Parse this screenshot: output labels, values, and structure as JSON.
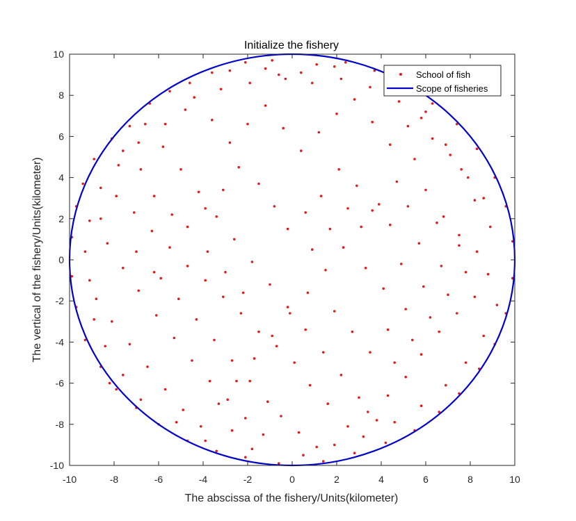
{
  "chart_data": {
    "type": "scatter",
    "title": "Initialize the fishery",
    "xlabel": "The abscissa of the fishery/Units(kilometer)",
    "ylabel": "The vertical of the fishery/Units(kilometer)",
    "xlim": [
      -10,
      10
    ],
    "ylim": [
      -10,
      10
    ],
    "xticks": [
      -10,
      -8,
      -6,
      -4,
      -2,
      0,
      2,
      4,
      6,
      8,
      10
    ],
    "yticks": [
      -10,
      -8,
      -6,
      -4,
      -2,
      0,
      2,
      4,
      6,
      8,
      10
    ],
    "grid": false,
    "legend_position": "top-right",
    "series": [
      {
        "name": "School of fish",
        "kind": "points",
        "color": "#e31a1c",
        "points": [
          [
            -0.9,
            9.7
          ],
          [
            -2.1,
            9.6
          ],
          [
            -2.8,
            9.2
          ],
          [
            -1.2,
            9.3
          ],
          [
            1.1,
            9.5
          ],
          [
            1.9,
            9.4
          ],
          [
            0.4,
            9.1
          ],
          [
            -0.3,
            8.8
          ],
          [
            -3.6,
            9.1
          ],
          [
            -4.6,
            8.6
          ],
          [
            -5.5,
            8.2
          ],
          [
            -6.4,
            7.6
          ],
          [
            -7.3,
            6.5
          ],
          [
            -8.1,
            5.9
          ],
          [
            -8.9,
            4.9
          ],
          [
            -9.4,
            3.7
          ],
          [
            -9.7,
            2.6
          ],
          [
            -9.9,
            1.1
          ],
          [
            -9.9,
            -0.8
          ],
          [
            -9.7,
            -2.3
          ],
          [
            -9.3,
            -3.9
          ],
          [
            -8.6,
            -5.2
          ],
          [
            -7.9,
            -6.3
          ],
          [
            -7.0,
            -7.2
          ],
          [
            -6.0,
            -8.0
          ],
          [
            -4.7,
            -8.8
          ],
          [
            -3.4,
            -9.3
          ],
          [
            -2.1,
            -9.6
          ],
          [
            -0.6,
            -9.9
          ],
          [
            1.4,
            -9.8
          ],
          [
            2.8,
            -9.4
          ],
          [
            4.2,
            -8.9
          ],
          [
            5.5,
            -8.3
          ],
          [
            6.6,
            -7.4
          ],
          [
            7.5,
            -6.5
          ],
          [
            8.4,
            -5.3
          ],
          [
            9.1,
            -4.1
          ],
          [
            9.6,
            -2.6
          ],
          [
            9.9,
            -0.9
          ],
          [
            9.9,
            0.9
          ],
          [
            9.6,
            2.6
          ],
          [
            9.1,
            4.0
          ],
          [
            8.3,
            5.4
          ],
          [
            7.4,
            6.6
          ],
          [
            6.3,
            7.6
          ],
          [
            5.1,
            8.5
          ],
          [
            3.7,
            9.2
          ],
          [
            2.4,
            9.6
          ],
          [
            -7.6,
            5.3
          ],
          [
            -6.8,
            4.4
          ],
          [
            -6.2,
            3.1
          ],
          [
            -5.4,
            2.2
          ],
          [
            -4.7,
            1.6
          ],
          [
            -3.9,
            2.5
          ],
          [
            -3.1,
            3.4
          ],
          [
            -2.4,
            4.5
          ],
          [
            -1.5,
            3.7
          ],
          [
            -0.8,
            2.6
          ],
          [
            -0.2,
            1.5
          ],
          [
            0.6,
            2.3
          ],
          [
            1.3,
            3.1
          ],
          [
            2.1,
            4.4
          ],
          [
            2.9,
            3.6
          ],
          [
            3.6,
            2.4
          ],
          [
            4.4,
            1.7
          ],
          [
            5.2,
            2.6
          ],
          [
            6.0,
            3.4
          ],
          [
            6.8,
            2.1
          ],
          [
            7.5,
            1.2
          ],
          [
            8.3,
            0.4
          ],
          [
            8.8,
            -0.7
          ],
          [
            8.2,
            -1.8
          ],
          [
            7.4,
            -2.6
          ],
          [
            6.6,
            -3.5
          ],
          [
            5.8,
            -4.6
          ],
          [
            5.1,
            -5.7
          ],
          [
            4.3,
            -6.6
          ],
          [
            3.4,
            -7.4
          ],
          [
            2.5,
            -8.1
          ],
          [
            1.6,
            -7.0
          ],
          [
            0.8,
            -6.1
          ],
          [
            0.1,
            -5.0
          ],
          [
            -0.7,
            -4.2
          ],
          [
            -1.5,
            -3.5
          ],
          [
            -2.3,
            -2.6
          ],
          [
            -3.1,
            -1.8
          ],
          [
            -3.9,
            -1.0
          ],
          [
            -4.7,
            -0.3
          ],
          [
            -5.5,
            0.6
          ],
          [
            -6.3,
            1.4
          ],
          [
            -7.1,
            2.3
          ],
          [
            -7.9,
            3.1
          ],
          [
            -8.6,
            2.0
          ],
          [
            -8.3,
            0.8
          ],
          [
            -7.6,
            -0.4
          ],
          [
            -6.9,
            -1.5
          ],
          [
            -6.1,
            -2.7
          ],
          [
            -5.3,
            -3.8
          ],
          [
            -4.5,
            -4.9
          ],
          [
            -3.7,
            -5.9
          ],
          [
            -2.9,
            -6.8
          ],
          [
            -2.1,
            -7.7
          ],
          [
            -1.3,
            -8.5
          ],
          [
            -0.5,
            -7.6
          ],
          [
            0.3,
            -8.4
          ],
          [
            1.1,
            -9.1
          ],
          [
            -8.8,
            -1.9
          ],
          [
            -8.1,
            -3.0
          ],
          [
            -7.3,
            -4.1
          ],
          [
            -6.5,
            -5.2
          ],
          [
            -5.7,
            -6.3
          ],
          [
            -4.9,
            -7.3
          ],
          [
            -4.1,
            -8.1
          ],
          [
            -3.3,
            -7.0
          ],
          [
            -2.5,
            -5.9
          ],
          [
            -1.7,
            -4.8
          ],
          [
            -0.9,
            -3.7
          ],
          [
            -0.1,
            -2.6
          ],
          [
            0.7,
            -1.6
          ],
          [
            1.5,
            -0.5
          ],
          [
            2.3,
            0.6
          ],
          [
            3.1,
            1.6
          ],
          [
            3.9,
            2.7
          ],
          [
            4.7,
            3.8
          ],
          [
            5.5,
            4.9
          ],
          [
            6.3,
            5.9
          ],
          [
            7.1,
            5.1
          ],
          [
            7.9,
            4.0
          ],
          [
            8.6,
            3.0
          ],
          [
            -6.6,
            6.6
          ],
          [
            -5.8,
            5.5
          ],
          [
            -5.0,
            4.4
          ],
          [
            -4.2,
            3.3
          ],
          [
            -3.4,
            2.1
          ],
          [
            -2.6,
            1.0
          ],
          [
            -1.8,
            -0.1
          ],
          [
            -1.0,
            -1.2
          ],
          [
            -0.2,
            -2.3
          ],
          [
            0.6,
            -3.4
          ],
          [
            1.4,
            -4.5
          ],
          [
            2.2,
            -5.6
          ],
          [
            3.0,
            -6.7
          ],
          [
            3.8,
            -7.8
          ],
          [
            4.6,
            -5.0
          ],
          [
            5.4,
            -3.9
          ],
          [
            6.2,
            -2.8
          ],
          [
            7.0,
            -1.7
          ],
          [
            7.8,
            -0.6
          ],
          [
            -4.4,
            7.9
          ],
          [
            -3.6,
            6.8
          ],
          [
            -2.8,
            5.7
          ],
          [
            -2.0,
            6.6
          ],
          [
            -1.2,
            7.5
          ],
          [
            -0.4,
            6.4
          ],
          [
            0.4,
            5.3
          ],
          [
            1.2,
            6.2
          ],
          [
            2.0,
            7.1
          ],
          [
            2.8,
            7.8
          ],
          [
            3.6,
            6.7
          ],
          [
            4.4,
            5.6
          ],
          [
            5.2,
            6.5
          ],
          [
            6.0,
            7.2
          ],
          [
            -5.9,
            -0.9
          ],
          [
            -5.1,
            -1.9
          ],
          [
            -4.3,
            -2.9
          ],
          [
            -3.5,
            -3.9
          ],
          [
            -2.7,
            -4.9
          ],
          [
            -1.9,
            -5.9
          ],
          [
            -1.1,
            -6.9
          ],
          [
            1.9,
            -2.5
          ],
          [
            2.7,
            -3.5
          ],
          [
            3.5,
            -4.5
          ],
          [
            4.3,
            -3.4
          ],
          [
            5.1,
            -2.4
          ],
          [
            5.9,
            -1.3
          ],
          [
            6.7,
            -0.3
          ],
          [
            7.5,
            0.7
          ],
          [
            -3.8,
            0.4
          ],
          [
            -3.0,
            -0.6
          ],
          [
            -2.2,
            -1.6
          ],
          [
            0.9,
            0.5
          ],
          [
            1.7,
            1.5
          ],
          [
            2.5,
            2.5
          ],
          [
            3.3,
            -0.4
          ],
          [
            4.1,
            -1.4
          ],
          [
            4.9,
            -0.2
          ],
          [
            5.7,
            0.8
          ],
          [
            6.5,
            1.8
          ],
          [
            -7.0,
            0.4
          ],
          [
            -6.2,
            -0.6
          ],
          [
            -8.4,
            -4.2
          ],
          [
            -7.6,
            -5.6
          ],
          [
            -6.8,
            -6.8
          ],
          [
            -5.2,
            -7.9
          ],
          [
            -3.9,
            -8.8
          ],
          [
            -2.7,
            -8.3
          ],
          [
            -1.8,
            -9.2
          ],
          [
            0.5,
            -9.5
          ],
          [
            1.9,
            -9.0
          ],
          [
            3.2,
            -8.6
          ],
          [
            4.6,
            -7.9
          ],
          [
            5.8,
            -7.1
          ],
          [
            6.9,
            -6.1
          ],
          [
            7.8,
            -5.0
          ],
          [
            8.6,
            -3.7
          ],
          [
            9.2,
            -2.2
          ],
          [
            8.9,
            1.6
          ],
          [
            8.2,
            2.9
          ],
          [
            7.6,
            4.4
          ],
          [
            6.9,
            5.6
          ],
          [
            5.8,
            6.9
          ],
          [
            4.8,
            7.7
          ],
          [
            3.5,
            8.4
          ],
          [
            2.2,
            8.8
          ],
          [
            0.9,
            8.6
          ],
          [
            -0.6,
            9.0
          ],
          [
            -1.9,
            8.6
          ],
          [
            -3.2,
            8.3
          ],
          [
            -4.8,
            7.3
          ],
          [
            -5.7,
            6.6
          ],
          [
            -6.9,
            5.7
          ],
          [
            -7.8,
            4.6
          ],
          [
            -8.6,
            3.5
          ],
          [
            -9.1,
            1.9
          ],
          [
            -9.3,
            0.4
          ],
          [
            -9.1,
            -1.0
          ],
          [
            -8.9,
            -2.9
          ],
          [
            -8.2,
            -6.0
          ]
        ]
      },
      {
        "name": "Scope of fisheries",
        "kind": "circle",
        "color": "#0000cc",
        "center": [
          0,
          0
        ],
        "radius": 10
      }
    ]
  }
}
